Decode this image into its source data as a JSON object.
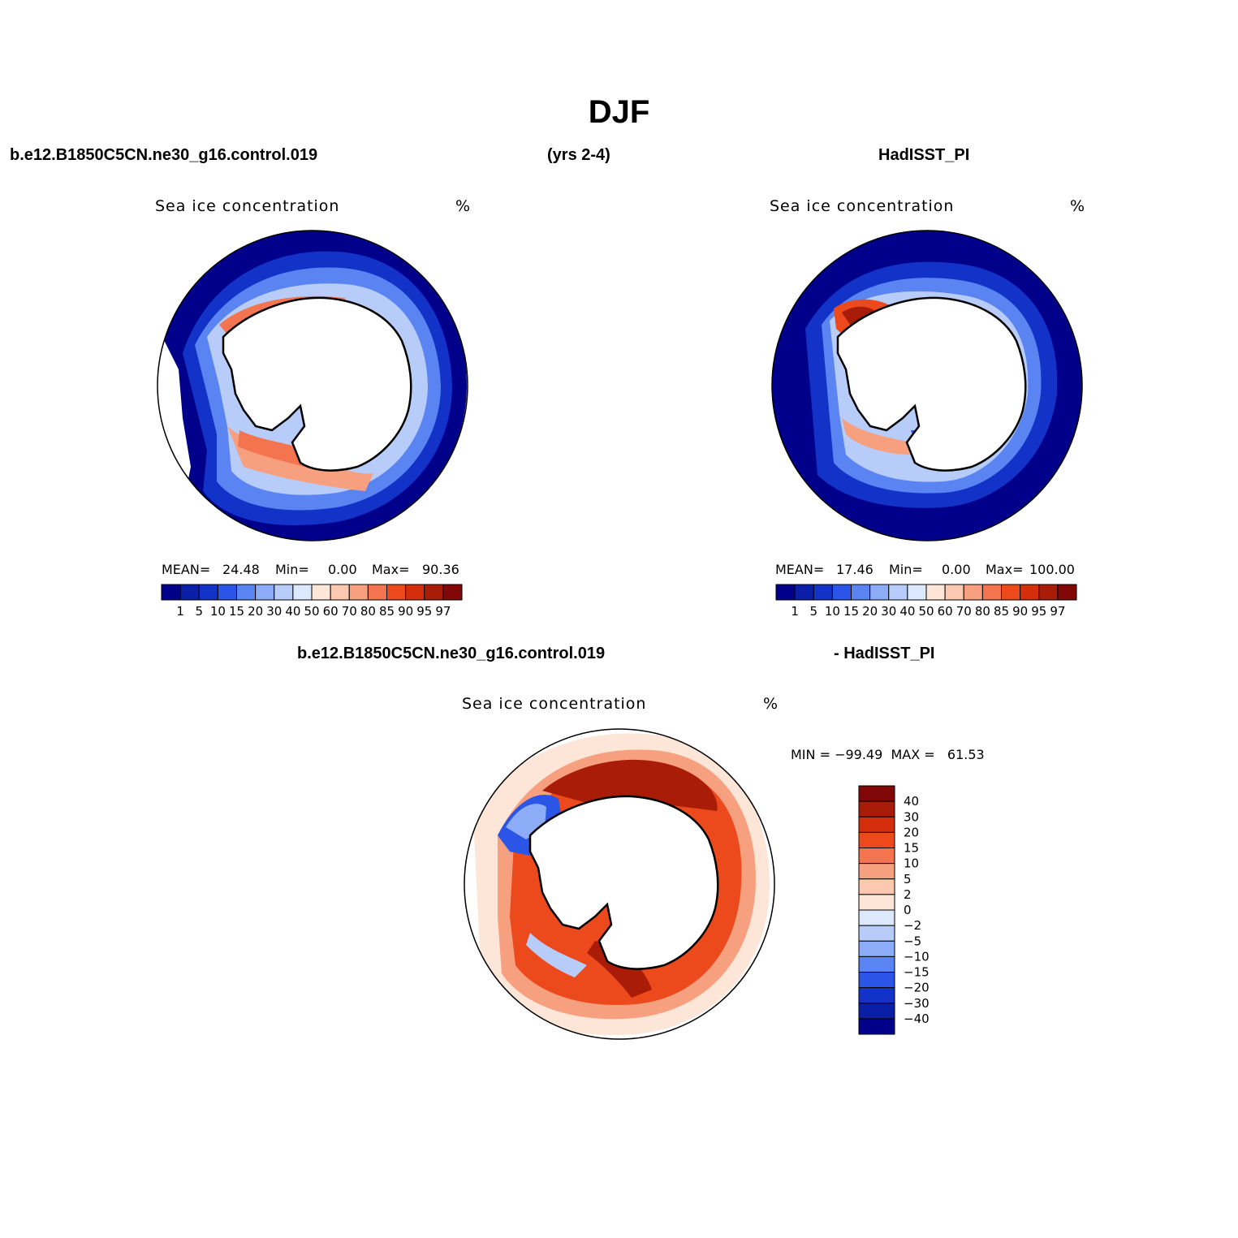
{
  "figure_title": "DJF",
  "header": {
    "left": "b.e12.B1850C5CN.ne30_g16.control.019",
    "center": "(yrs 2-4)",
    "right": "HadISST_PI"
  },
  "diff_header": {
    "left": "b.e12.B1850C5CN.ne30_g16.control.019",
    "right": "- HadISST_PI"
  },
  "panels": {
    "model": {
      "label": "Sea ice concentration",
      "units": "%",
      "mean_label": "MEAN=",
      "mean": "24.48",
      "min_label": "Min=",
      "min": "0.00",
      "max_label": "Max=",
      "max": "90.36"
    },
    "obs": {
      "label": "Sea ice concentration",
      "units": "%",
      "mean_label": "MEAN=",
      "mean": "17.46",
      "min_label": "Min=",
      "min": "0.00",
      "max_label": "Max=",
      "max": "100.00"
    },
    "diff": {
      "label": "Sea ice concentration",
      "units": "%",
      "minmax": "MIN = −99.49  MAX =   61.53"
    }
  },
  "colorbar_levels": [
    "1",
    "5",
    "10",
    "15",
    "20",
    "30",
    "40",
    "50",
    "60",
    "70",
    "80",
    "85",
    "90",
    "95",
    "97"
  ],
  "colorbar_colors": [
    "#00008b",
    "#0a1ea8",
    "#1232c8",
    "#2a55e6",
    "#5a84f2",
    "#8cacf7",
    "#b8ccf9",
    "#dce8fb",
    "#fde6d8",
    "#fcc8b0",
    "#f7a080",
    "#f57450",
    "#ec4a1c",
    "#d42e0c",
    "#a81c08",
    "#820808"
  ],
  "diff_levels": [
    "40",
    "30",
    "20",
    "15",
    "10",
    "5",
    "2",
    "0",
    "−2",
    "−5",
    "−10",
    "−15",
    "−20",
    "−30",
    "−40"
  ],
  "diff_colors": [
    "#820808",
    "#a81c08",
    "#d42e0c",
    "#ec4a1c",
    "#f57450",
    "#f7a080",
    "#fcc8b0",
    "#fde6d8",
    "#dce8fb",
    "#b8ccf9",
    "#8cacf7",
    "#5a84f2",
    "#2a55e6",
    "#1232c8",
    "#0a1ea8",
    "#00008b"
  ]
}
